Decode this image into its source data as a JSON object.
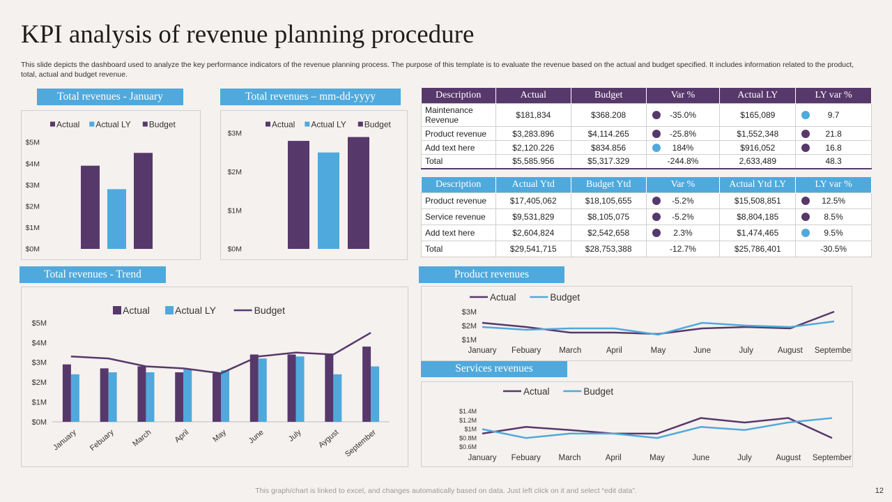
{
  "title": "KPI analysis of revenue planning procedure",
  "subtitle": "This slide depicts the dashboard used to analyze the key performance indicators of the revenue planning process. The purpose of this template is to evaluate the revenue based on the actual and budget specified. It includes information related to the product, total, actual and budget revenue.",
  "colors": {
    "purple": "#57386b",
    "blue": "#4fa9dc",
    "background": "#f5f1ee"
  },
  "section_titles": {
    "jan": "Total revenues - January",
    "mm": "Total revenues – mm-dd-yyyy",
    "trend": "Total revenues - Trend",
    "product": "Product revenues",
    "services": "Services revenues"
  },
  "table1": {
    "headers": [
      "Description",
      "Actual",
      "Budget",
      "Var %",
      "Actual LY",
      "LY var %"
    ],
    "rows": [
      {
        "desc": "Maintenance Revenue",
        "actual": "$181,834",
        "budget": "$368.208",
        "var": "-35.0%",
        "var_dot": "purple",
        "actual_ly": "$165,089",
        "ly_var": "9.7",
        "ly_dot": "blue"
      },
      {
        "desc": "Product revenue",
        "actual": "$3,283.896",
        "budget": "$4,114.265",
        "var": "-25.8%",
        "var_dot": "purple",
        "actual_ly": "$1,552,348",
        "ly_var": "21.8",
        "ly_dot": "purple"
      },
      {
        "desc": "Add text here",
        "actual": "$2,120.226",
        "budget": "$834.856",
        "var": "184%",
        "var_dot": "blue",
        "actual_ly": "$916,052",
        "ly_var": "16.8",
        "ly_dot": "purple"
      },
      {
        "desc": "Total",
        "actual": "$5,585.956",
        "budget": "$5,317.329",
        "var": "-244.8%",
        "var_dot": "",
        "actual_ly": "2,633,489",
        "ly_var": "48.3",
        "ly_dot": ""
      }
    ]
  },
  "table2": {
    "headers": [
      "Description",
      "Actual Ytd",
      "Budget Ytd",
      "Var %",
      "Actual Ytd LY",
      "LY var %"
    ],
    "rows": [
      {
        "desc": "Product revenue",
        "actual": "$17,405,062",
        "budget": "$18,105,655",
        "var": "-5.2%",
        "var_dot": "purple",
        "actual_ly": "$15,508,851",
        "ly_var": "12.5%",
        "ly_dot": "purple"
      },
      {
        "desc": "Service revenue",
        "actual": "$9,531,829",
        "budget": "$8,105,075",
        "var": "-5.2%",
        "var_dot": "purple",
        "actual_ly": "$8,804,185",
        "ly_var": "8.5%",
        "ly_dot": "purple"
      },
      {
        "desc": "Add text here",
        "actual": "$2,604,824",
        "budget": "$2,542,658",
        "var": "2.3%",
        "var_dot": "purple",
        "actual_ly": "$1,474,465",
        "ly_var": "9.5%",
        "ly_dot": "blue"
      },
      {
        "desc": "Total",
        "actual": "$29,541,715",
        "budget": "$28,753,388",
        "var": "-12.7%",
        "var_dot": "",
        "actual_ly": "$25,786,401",
        "ly_var": "-30.5%",
        "ly_dot": ""
      }
    ]
  },
  "chart_data": [
    {
      "id": "jan",
      "type": "bar",
      "title": "Total revenues - January",
      "legend": [
        "Actual",
        "Actual LY",
        "Budget"
      ],
      "series": [
        {
          "name": "Actual",
          "value": 3.9,
          "color": "#57386b"
        },
        {
          "name": "Actual LY",
          "value": 2.8,
          "color": "#4fa9dc"
        },
        {
          "name": "Budget",
          "value": 4.5,
          "color": "#57386b"
        }
      ],
      "ylim": [
        0,
        5
      ],
      "yticks": [
        0,
        1,
        2,
        3,
        4,
        5
      ],
      "ytick_labels": [
        "$0M",
        "$1M",
        "$2M",
        "$3M",
        "$4M",
        "$5M"
      ]
    },
    {
      "id": "mm",
      "type": "bar",
      "title": "Total revenues – mm-dd-yyyy",
      "legend": [
        "Actual",
        "Actual LY",
        "Budget"
      ],
      "series": [
        {
          "name": "Actual",
          "value": 2.8,
          "color": "#57386b"
        },
        {
          "name": "Actual LY",
          "value": 2.5,
          "color": "#4fa9dc"
        },
        {
          "name": "Budget",
          "value": 2.9,
          "color": "#57386b"
        }
      ],
      "ylim": [
        0,
        3
      ],
      "yticks": [
        0,
        1,
        2,
        3
      ],
      "ytick_labels": [
        "$0M",
        "$1M",
        "$2M",
        "$3M"
      ]
    },
    {
      "id": "trend",
      "type": "bar",
      "title": "Total revenues - Trend",
      "legend": [
        "Actual",
        "Actual LY",
        "Budget"
      ],
      "categories": [
        "January",
        "Febuary",
        "March",
        "April",
        "May",
        "June",
        "July",
        "Aygust",
        "September"
      ],
      "series": [
        {
          "name": "Actual",
          "kind": "bar",
          "color": "#57386b",
          "values": [
            2.9,
            2.7,
            2.8,
            2.5,
            2.45,
            3.4,
            3.4,
            3.45,
            3.8
          ]
        },
        {
          "name": "Actual LY",
          "kind": "bar",
          "color": "#4fa9dc",
          "values": [
            2.4,
            2.5,
            2.5,
            2.65,
            2.6,
            3.2,
            3.3,
            2.4,
            2.8
          ]
        },
        {
          "name": "Budget",
          "kind": "line",
          "color": "#57386b",
          "values": [
            3.3,
            3.2,
            2.8,
            2.7,
            2.45,
            3.3,
            3.5,
            3.4,
            4.5
          ]
        }
      ],
      "ylim": [
        0,
        5
      ],
      "yticks": [
        0,
        1,
        2,
        3,
        4,
        5
      ],
      "ytick_labels": [
        "$0M",
        "$1M",
        "$2M",
        "$3M",
        "$4M",
        "$5M"
      ]
    },
    {
      "id": "product",
      "type": "line",
      "title": "Product revenues",
      "legend": [
        "Actual",
        "Budget"
      ],
      "categories": [
        "January",
        "Febuary",
        "March",
        "April",
        "May",
        "June",
        "July",
        "August",
        "September"
      ],
      "series": [
        {
          "name": "Actual",
          "color": "#57386b",
          "values": [
            2.2,
            1.9,
            1.5,
            1.5,
            1.4,
            1.8,
            1.9,
            1.8,
            3.0
          ]
        },
        {
          "name": "Budget",
          "color": "#4fa9dc",
          "values": [
            1.9,
            1.7,
            1.8,
            1.8,
            1.35,
            2.2,
            2.0,
            1.9,
            2.3
          ]
        }
      ],
      "ylim": [
        1,
        3
      ],
      "yticks": [
        1,
        2,
        3
      ],
      "ytick_labels": [
        "$1M",
        "$2M",
        "$3M"
      ]
    },
    {
      "id": "services",
      "type": "line",
      "title": "Services revenues",
      "legend": [
        "Actual",
        "Budget"
      ],
      "categories": [
        "January",
        "Febuary",
        "March",
        "April",
        "May",
        "June",
        "July",
        "August",
        "September"
      ],
      "series": [
        {
          "name": "Actual",
          "color": "#57386b",
          "values": [
            0.9,
            1.05,
            0.98,
            0.9,
            0.9,
            1.25,
            1.15,
            1.25,
            0.8
          ]
        },
        {
          "name": "Budget",
          "color": "#4fa9dc",
          "values": [
            1.0,
            0.8,
            0.9,
            0.9,
            0.8,
            1.05,
            0.98,
            1.15,
            1.25
          ]
        }
      ],
      "ylim": [
        0.6,
        1.4
      ],
      "yticks": [
        0.6,
        0.8,
        1.0,
        1.2,
        1.4
      ],
      "ytick_labels": [
        "$0.6M",
        "$0.8M",
        "$1M",
        "$1.2M",
        "$1.4M"
      ]
    }
  ],
  "footer": "This graph/chart is linked to excel,  and changes automatically based on data. Just left click on it and select “edit data”.",
  "page_number": "12"
}
